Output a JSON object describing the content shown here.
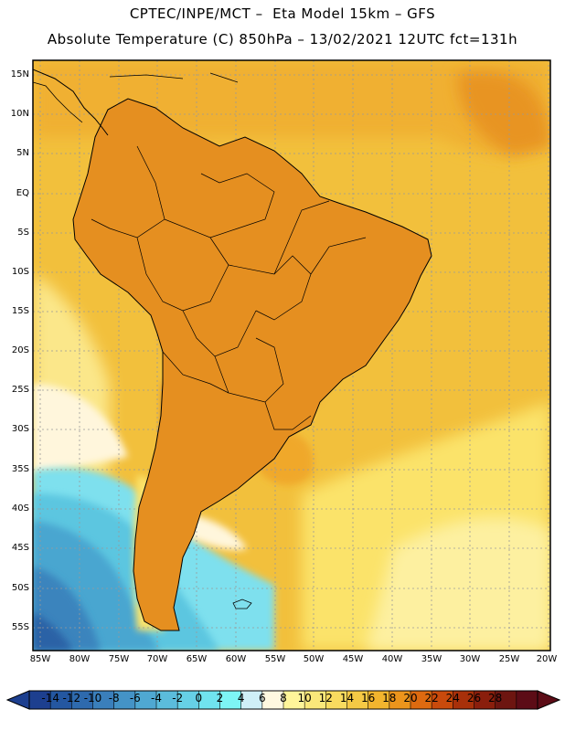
{
  "title": {
    "line1": "CPTEC/INPE/MCT –  Eta Model 15km – GFS",
    "line2": "Absolute Temperature (C) 850hPa – 13/02/2021 12UTC fct=131h"
  },
  "map": {
    "region": "South America",
    "latitude_labels": [
      "15N",
      "10N",
      "5N",
      "EQ",
      "5S",
      "10S",
      "15S",
      "20S",
      "25S",
      "30S",
      "35S",
      "40S",
      "45S",
      "50S",
      "55S"
    ],
    "longitude_labels": [
      "85W",
      "80W",
      "75W",
      "70W",
      "65W",
      "60W",
      "55W",
      "50W",
      "45W",
      "40W",
      "35W",
      "30W",
      "25W",
      "20W"
    ]
  },
  "colorbar": {
    "labels": [
      "-14",
      "-12",
      "-10",
      "-8",
      "-6",
      "-4",
      "-2",
      "0",
      "2",
      "4",
      "6",
      "8",
      "10",
      "12",
      "14",
      "16",
      "18",
      "20",
      "22",
      "24",
      "26",
      "28"
    ],
    "colors": [
      "#1d3f8f",
      "#2457a1",
      "#2e6aae",
      "#3a7fbb",
      "#4493c6",
      "#4fa8d2",
      "#5bbcdc",
      "#66d0e6",
      "#70e3ef",
      "#7df5f5",
      "#cfeff7",
      "#fff8e0",
      "#fff59a",
      "#fbe87a",
      "#f8db5f",
      "#f5c945",
      "#f2b52e",
      "#ec951c",
      "#dd6a10",
      "#c94a0c",
      "#a8300a",
      "#8a1e0c",
      "#6d1510",
      "#5c0c16"
    ]
  },
  "colors": {
    "frame": "#000000",
    "grid": "#999999",
    "ocean_base": "#f2c03c",
    "land_base": "#e58f20"
  }
}
